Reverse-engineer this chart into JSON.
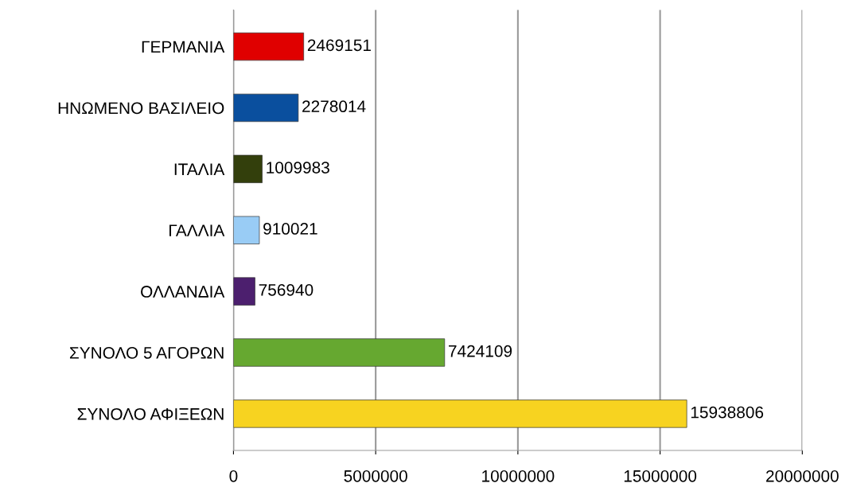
{
  "chart_data": {
    "type": "bar",
    "orientation": "horizontal",
    "categories": [
      "ΓΕΡΜΑΝΙΑ",
      "ΗΝΩΜΕΝΟ ΒΑΣΙΛΕΙΟ",
      "ΙΤΑΛΙΑ",
      "ΓΑΛΛΙΑ",
      "ΟΛΛΑΝΔΙΑ",
      "ΣΥΝΟΛΟ 5 ΑΓΟΡΩΝ",
      "ΣΥΝΟΛΟ ΑΦΙΞΕΩΝ"
    ],
    "values": [
      2469151,
      2278014,
      1009983,
      910021,
      756940,
      7424109,
      15938806
    ],
    "colors": [
      "#e00000",
      "#0a4f9e",
      "#333f0c",
      "#99ccf5",
      "#4c1f6e",
      "#66a830",
      "#f7d320"
    ],
    "xlim": [
      0,
      20000000
    ],
    "xticks": [
      0,
      5000000,
      10000000,
      15000000,
      20000000
    ],
    "grid": "x",
    "data_labels": true
  }
}
